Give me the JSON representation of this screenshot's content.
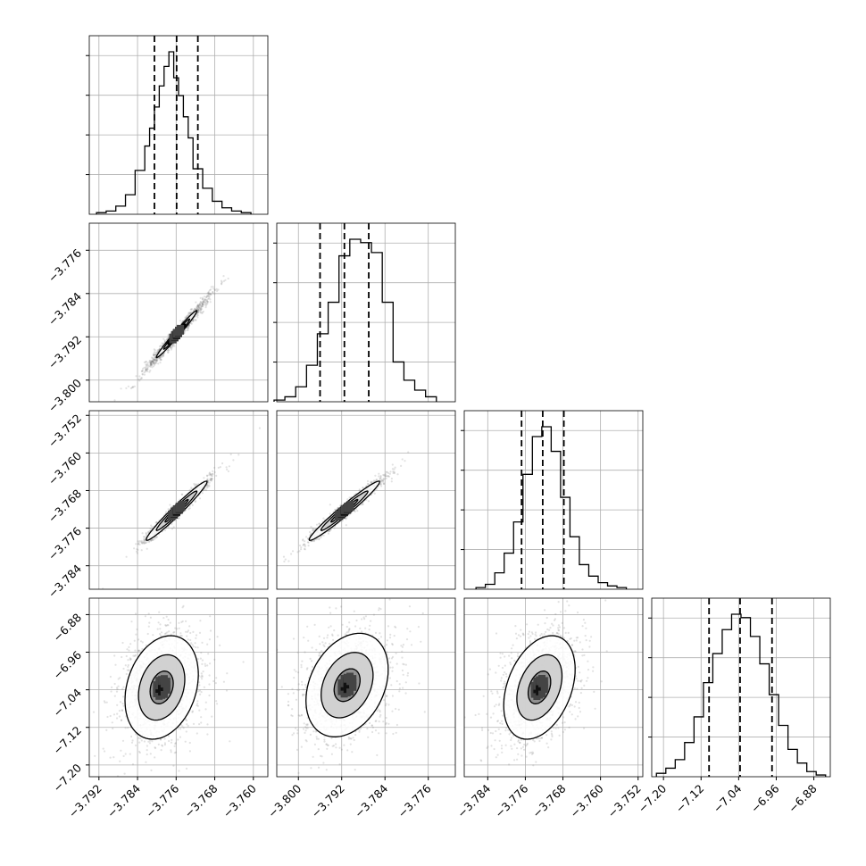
{
  "colors": {
    "line": "#000000",
    "grid": "#b0b0b0",
    "background": "#ffffff",
    "scatter": "#7a7a7a"
  },
  "chart_data": {
    "type": "corner",
    "description_note": "",
    "params": [
      {
        "range": [
          -3.794,
          -3.757
        ],
        "ticks": [
          -3.792,
          -3.784,
          -3.776,
          -3.768,
          -3.76
        ],
        "labels": [
          "−3.792",
          "−3.784",
          "−3.776",
          "−3.768",
          "−3.760"
        ]
      },
      {
        "range": [
          -3.804,
          -3.771
        ],
        "ticks": [
          -3.8,
          -3.792,
          -3.784,
          -3.776
        ],
        "labels": [
          "−3.800",
          "−3.792",
          "−3.784",
          "−3.776"
        ]
      },
      {
        "range": [
          -3.789,
          -3.751
        ],
        "ticks": [
          -3.784,
          -3.776,
          -3.768,
          -3.76,
          -3.752
        ],
        "labels": [
          "−3.784",
          "−3.776",
          "−3.768",
          "−3.760",
          "−3.752"
        ]
      },
      {
        "range": [
          -7.225,
          -6.845
        ],
        "ticks": [
          -7.2,
          -7.12,
          -7.04,
          -6.96,
          -6.88
        ],
        "labels": [
          "−7.20",
          "−7.12",
          "−7.04",
          "−6.96",
          "−6.88"
        ]
      }
    ],
    "y_tick_labels": [
      null,
      {
        "ticks": [
          -3.8,
          -3.792,
          -3.784,
          -3.776
        ],
        "labels": [
          "−3.800",
          "−3.792",
          "−3.784",
          "−3.776"
        ]
      },
      {
        "ticks": [
          -3.784,
          -3.776,
          -3.768,
          -3.76,
          -3.752
        ],
        "labels": [
          "−3.784",
          "−3.776",
          "−3.768",
          "−3.760",
          "−3.752"
        ]
      },
      {
        "ticks": [
          -7.2,
          -7.12,
          -7.04,
          -6.96,
          -6.88
        ],
        "labels": [
          "−7.20",
          "−7.12",
          "−7.04",
          "−6.96",
          "−6.88"
        ]
      }
    ],
    "histograms": [
      {
        "bin_edges": [
          -3.7925,
          -3.7905,
          -3.7885,
          -3.7865,
          -3.7845,
          -3.7825,
          -3.7815,
          -3.7805,
          -3.7795,
          -3.7785,
          -3.7775,
          -3.7765,
          -3.7755,
          -3.7745,
          -3.7735,
          -3.7725,
          -3.7705,
          -3.7685,
          -3.7665,
          -3.7645,
          -3.7625,
          -3.7605
        ],
        "counts": [
          0.01,
          0.02,
          0.05,
          0.12,
          0.27,
          0.42,
          0.53,
          0.66,
          0.79,
          0.91,
          1.0,
          0.84,
          0.73,
          0.6,
          0.47,
          0.28,
          0.16,
          0.08,
          0.04,
          0.02,
          0.01
        ],
        "quantiles": [
          -3.7805,
          -3.7759,
          -3.7715
        ]
      },
      {
        "bin_edges": [
          -3.8045,
          -3.8025,
          -3.8005,
          -3.7985,
          -3.7965,
          -3.7945,
          -3.7925,
          -3.7905,
          -3.7885,
          -3.7865,
          -3.7845,
          -3.7825,
          -3.7805,
          -3.7785,
          -3.7765,
          -3.7745
        ],
        "counts": [
          0.01,
          0.03,
          0.09,
          0.22,
          0.41,
          0.6,
          0.88,
          0.98,
          0.96,
          0.9,
          0.6,
          0.24,
          0.13,
          0.07,
          0.03
        ],
        "quantiles": [
          -3.796,
          -3.7915,
          -3.787
        ]
      },
      {
        "bin_edges": [
          -3.7865,
          -3.7845,
          -3.7825,
          -3.7805,
          -3.7785,
          -3.7765,
          -3.7745,
          -3.7725,
          -3.7705,
          -3.7685,
          -3.7665,
          -3.7645,
          -3.7625,
          -3.7605,
          -3.7585,
          -3.7565,
          -3.7545
        ],
        "counts": [
          0.01,
          0.03,
          0.1,
          0.22,
          0.41,
          0.7,
          0.93,
          0.99,
          0.84,
          0.56,
          0.32,
          0.15,
          0.08,
          0.04,
          0.02,
          0.01
        ],
        "quantiles": [
          -3.7768,
          -3.7723,
          -3.7678
        ]
      },
      {
        "bin_edges": [
          -7.215,
          -7.195,
          -7.175,
          -7.155,
          -7.135,
          -7.115,
          -7.095,
          -7.075,
          -7.055,
          -7.035,
          -7.015,
          -6.995,
          -6.975,
          -6.955,
          -6.935,
          -6.915,
          -6.895,
          -6.875,
          -6.855
        ],
        "counts": [
          0.02,
          0.05,
          0.1,
          0.2,
          0.35,
          0.55,
          0.72,
          0.86,
          0.95,
          0.93,
          0.82,
          0.66,
          0.48,
          0.3,
          0.16,
          0.08,
          0.03,
          0.01
        ],
        "quantiles": [
          -7.103,
          -7.037,
          -6.969
        ]
      }
    ],
    "pairs": [
      {
        "x": 0,
        "y": 1,
        "mean": [
          -3.7759,
          -3.7915
        ],
        "sd": [
          0.003,
          0.0031
        ],
        "rho": 0.985,
        "levels": [
          0.6,
          0.9,
          1.4
        ]
      },
      {
        "x": 0,
        "y": 2,
        "mean": [
          -3.7759,
          -3.7723
        ],
        "sd": [
          0.003,
          0.003
        ],
        "rho": 0.975,
        "levels": [
          0.8,
          1.4,
          2.1
        ]
      },
      {
        "x": 1,
        "y": 2,
        "mean": [
          -3.7915,
          -3.7723
        ],
        "sd": [
          0.0031,
          0.003
        ],
        "rho": 0.975,
        "levels": [
          0.8,
          1.4,
          2.1
        ]
      },
      {
        "x": 0,
        "y": 3,
        "mean": [
          -3.779,
          -7.035
        ],
        "sd": [
          0.004,
          0.058
        ],
        "rho": 0.25,
        "levels": [
          0.6,
          1.2,
          1.9
        ]
      },
      {
        "x": 1,
        "y": 3,
        "mean": [
          -3.791,
          -7.03
        ],
        "sd": [
          0.004,
          0.058
        ],
        "rho": 0.3,
        "levels": [
          0.6,
          1.2,
          1.9
        ]
      },
      {
        "x": 2,
        "y": 3,
        "mean": [
          -3.773,
          -7.035
        ],
        "sd": [
          0.004,
          0.058
        ],
        "rho": 0.35,
        "levels": [
          0.6,
          1.2,
          1.9
        ]
      }
    ],
    "grid": true,
    "n_params": 4
  }
}
